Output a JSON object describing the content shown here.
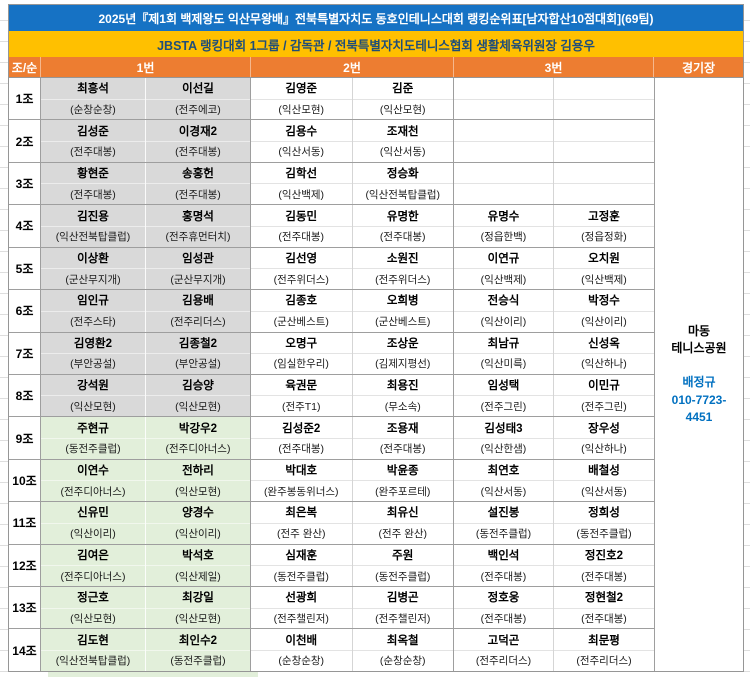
{
  "title": "2025년『제1회 백제왕도 익산무왕배』전북특별자치도 동호인테니스대회 랭킹순위표[남자합산10점대회](69팀)",
  "subtitle": "JBSTA 랭킹대회 1그룹 / 감독관 / 전북특별자치도테니스협회 생활체육위원장 김용우",
  "headers": [
    "조/순",
    "1번",
    "2번",
    "3번",
    "경기장"
  ],
  "venue": {
    "line1": "마동",
    "line2": "테니스공원",
    "manager": "배정규",
    "phone": "010-7723-4451"
  },
  "colors": {
    "title_bg": "#1672C4",
    "title_text": "#FFFFFF",
    "subtitle_bg": "#FFC000",
    "subtitle_text": "#1F4E79",
    "header_bg": "#ED7D31",
    "header_text": "#FFFFFF",
    "fill_gray": "#D9D9D9",
    "fill_green": "#E2EFDA",
    "contact_blue": "#0070C0"
  },
  "groups": [
    {
      "no": "1조",
      "fill": "gray",
      "players": [
        {
          "name": "최흥석",
          "club": "(순창순창)"
        },
        {
          "name": "이선길",
          "club": "(전주에코)"
        },
        {
          "name": "김영준",
          "club": "(익산모현)"
        },
        {
          "name": "김준",
          "club": "(익산모현)"
        },
        {
          "name": "",
          "club": ""
        },
        {
          "name": "",
          "club": ""
        }
      ]
    },
    {
      "no": "2조",
      "fill": "gray",
      "players": [
        {
          "name": "김성준",
          "club": "(전주대봉)"
        },
        {
          "name": "이경재2",
          "club": "(전주대봉)"
        },
        {
          "name": "김용수",
          "club": "(익산서동)"
        },
        {
          "name": "조재천",
          "club": "(익산서동)"
        },
        {
          "name": "",
          "club": ""
        },
        {
          "name": "",
          "club": ""
        }
      ]
    },
    {
      "no": "3조",
      "fill": "gray",
      "players": [
        {
          "name": "황현준",
          "club": "(전주대봉)"
        },
        {
          "name": "송홍헌",
          "club": "(전주대봉)"
        },
        {
          "name": "김학선",
          "club": "(익산백제)"
        },
        {
          "name": "정승화",
          "club": "(익산전북탑클럽)"
        },
        {
          "name": "",
          "club": ""
        },
        {
          "name": "",
          "club": ""
        }
      ]
    },
    {
      "no": "4조",
      "fill": "gray",
      "players": [
        {
          "name": "김진용",
          "club": "(익산전북탑클럽)"
        },
        {
          "name": "홍명석",
          "club": "(전주휴먼터치)"
        },
        {
          "name": "김동민",
          "club": "(전주대봉)"
        },
        {
          "name": "유명한",
          "club": "(전주대봉)"
        },
        {
          "name": "유명수",
          "club": "(정읍한백)"
        },
        {
          "name": "고정훈",
          "club": "(정읍정화)"
        }
      ]
    },
    {
      "no": "5조",
      "fill": "gray",
      "players": [
        {
          "name": "이상환",
          "club": "(군산무지개)"
        },
        {
          "name": "임성관",
          "club": "(군산무지개)"
        },
        {
          "name": "김선영",
          "club": "(전주위더스)"
        },
        {
          "name": "소원진",
          "club": "(전주위더스)"
        },
        {
          "name": "이연규",
          "club": "(익산백제)"
        },
        {
          "name": "오치원",
          "club": "(익산백제)"
        }
      ]
    },
    {
      "no": "6조",
      "fill": "gray",
      "players": [
        {
          "name": "임인규",
          "club": "(전주스타)"
        },
        {
          "name": "김용배",
          "club": "(전주리더스)"
        },
        {
          "name": "김종호",
          "club": "(군산베스트)"
        },
        {
          "name": "오희병",
          "club": "(군산베스트)"
        },
        {
          "name": "전승식",
          "club": "(익산이리)"
        },
        {
          "name": "박정수",
          "club": "(익산이리)"
        }
      ]
    },
    {
      "no": "7조",
      "fill": "gray",
      "players": [
        {
          "name": "김영환2",
          "club": "(부안공설)"
        },
        {
          "name": "김종철2",
          "club": "(부안공설)"
        },
        {
          "name": "오명구",
          "club": "(임실한우리)"
        },
        {
          "name": "조상운",
          "club": "(김제지평선)"
        },
        {
          "name": "최남규",
          "club": "(익산미륵)"
        },
        {
          "name": "신성옥",
          "club": "(익산하나)"
        }
      ]
    },
    {
      "no": "8조",
      "fill": "gray",
      "players": [
        {
          "name": "강석원",
          "club": "(익산모현)"
        },
        {
          "name": "김승양",
          "club": "(익산모현)"
        },
        {
          "name": "육권문",
          "club": "(전주T1)"
        },
        {
          "name": "최용진",
          "club": "(무소속)"
        },
        {
          "name": "임성택",
          "club": "(전주그린)"
        },
        {
          "name": "이민규",
          "club": "(전주그린)"
        }
      ]
    },
    {
      "no": "9조",
      "fill": "green",
      "players": [
        {
          "name": "주현규",
          "club": "(동전주클럽)"
        },
        {
          "name": "박강우2",
          "club": "(전주디아너스)"
        },
        {
          "name": "김성준2",
          "club": "(전주대봉)"
        },
        {
          "name": "조용재",
          "club": "(전주대봉)"
        },
        {
          "name": "김성태3",
          "club": "(익산한샘)"
        },
        {
          "name": "장우성",
          "club": "(익산하나)"
        }
      ]
    },
    {
      "no": "10조",
      "fill": "green",
      "players": [
        {
          "name": "이연수",
          "club": "(전주디아너스)"
        },
        {
          "name": "전하리",
          "club": "(익산모현)"
        },
        {
          "name": "박대호",
          "club": "(완주봉동위너스)"
        },
        {
          "name": "박윤종",
          "club": "(완주포르테)"
        },
        {
          "name": "최연호",
          "club": "(익산서동)"
        },
        {
          "name": "배철성",
          "club": "(익산서동)"
        }
      ]
    },
    {
      "no": "11조",
      "fill": "green",
      "players": [
        {
          "name": "신유민",
          "club": "(익산이리)"
        },
        {
          "name": "양경수",
          "club": "(익산이리)"
        },
        {
          "name": "최은복",
          "club": "(전주 완산)"
        },
        {
          "name": "최유신",
          "club": "(전주 완산)"
        },
        {
          "name": "설진봉",
          "club": "(동전주클럽)"
        },
        {
          "name": "정희성",
          "club": "(동전주클럽)"
        }
      ]
    },
    {
      "no": "12조",
      "fill": "green",
      "players": [
        {
          "name": "김여은",
          "club": "(전주디아너스)"
        },
        {
          "name": "박석호",
          "club": "(익산제일)"
        },
        {
          "name": "심재훈",
          "club": "(동전주클럽)"
        },
        {
          "name": "주원",
          "club": "(동전주클럽)"
        },
        {
          "name": "백인석",
          "club": "(전주대봉)"
        },
        {
          "name": "정진호2",
          "club": "(전주대봉)"
        }
      ]
    },
    {
      "no": "13조",
      "fill": "green",
      "players": [
        {
          "name": "정근호",
          "club": "(익산모현)"
        },
        {
          "name": "최강일",
          "club": "(익산모현)"
        },
        {
          "name": "선광희",
          "club": "(전주챌린저)"
        },
        {
          "name": "김병곤",
          "club": "(전주챌린저)"
        },
        {
          "name": "정호웅",
          "club": "(전주대봉)"
        },
        {
          "name": "정현철2",
          "club": "(전주대봉)"
        }
      ]
    },
    {
      "no": "14조",
      "fill": "green",
      "players": [
        {
          "name": "김도현",
          "club": "(익산전북탑클럽)"
        },
        {
          "name": "최인수2",
          "club": "(동전주클럽)"
        },
        {
          "name": "이천배",
          "club": "(순창순창)"
        },
        {
          "name": "최옥철",
          "club": "(순창순창)"
        },
        {
          "name": "고덕곤",
          "club": "(전주리더스)"
        },
        {
          "name": "최문평",
          "club": "(전주리더스)"
        }
      ]
    }
  ]
}
